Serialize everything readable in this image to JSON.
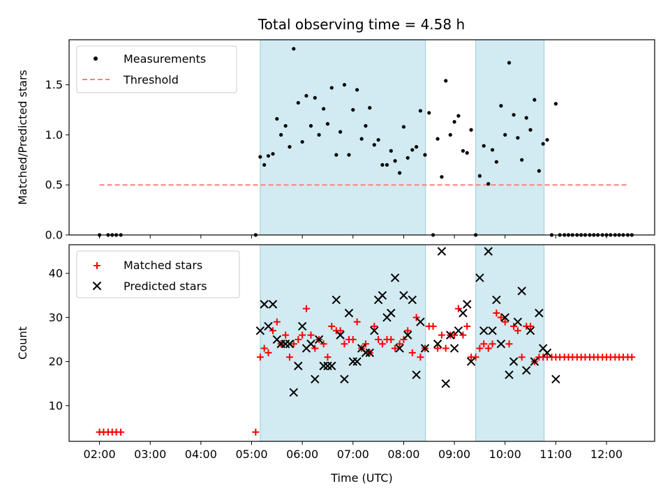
{
  "title": "Total observing time = 4.58 h",
  "colors": {
    "shade": "#add8e6",
    "measurement": "#000000",
    "threshold": "#ff7f7f",
    "matched": "#ff0000",
    "predicted": "#000000"
  },
  "chart_data": [
    {
      "type": "scatter",
      "ylabel": "Matched/Predicted stars",
      "xlabel": "",
      "xlim": [
        1.4,
        12.95
      ],
      "ylim": [
        0,
        1.95
      ],
      "yticks": [
        0.0,
        0.5,
        1.0,
        1.5
      ],
      "ytick_labels": [
        "0.0",
        "0.5",
        "1.0",
        "1.5"
      ],
      "legend": {
        "position": "upper left",
        "entries": [
          {
            "label": "Measurements",
            "marker": "dot"
          },
          {
            "label": "Threshold",
            "marker": "dashed-line"
          }
        ]
      },
      "shaded_intervals": [
        [
          5.17,
          8.43
        ],
        [
          9.42,
          10.77
        ]
      ],
      "threshold": {
        "name": "Threshold",
        "y": 0.5,
        "x_start": 2.0,
        "x_end": 12.43
      },
      "series": [
        {
          "name": "Measurements",
          "points": [
            [
              2.0,
              0
            ],
            [
              2.17,
              0
            ],
            [
              2.25,
              0
            ],
            [
              2.33,
              0
            ],
            [
              2.42,
              0
            ],
            [
              5.08,
              0
            ],
            [
              5.17,
              0.78
            ],
            [
              5.25,
              0.7
            ],
            [
              5.33,
              0.79
            ],
            [
              5.42,
              0.81
            ],
            [
              5.5,
              1.16
            ],
            [
              5.58,
              1.0
            ],
            [
              5.67,
              1.09
            ],
            [
              5.75,
              0.88
            ],
            [
              5.83,
              1.86
            ],
            [
              5.92,
              1.32
            ],
            [
              6.0,
              0.93
            ],
            [
              6.08,
              1.39
            ],
            [
              6.17,
              1.09
            ],
            [
              6.25,
              1.37
            ],
            [
              6.33,
              1.0
            ],
            [
              6.42,
              1.26
            ],
            [
              6.5,
              1.11
            ],
            [
              6.58,
              1.47
            ],
            [
              6.67,
              0.8
            ],
            [
              6.75,
              1.03
            ],
            [
              6.83,
              1.5
            ],
            [
              6.92,
              0.8
            ],
            [
              7.0,
              1.25
            ],
            [
              7.08,
              1.45
            ],
            [
              7.17,
              0.96
            ],
            [
              7.25,
              1.09
            ],
            [
              7.33,
              1.27
            ],
            [
              7.42,
              0.9
            ],
            [
              7.5,
              0.95
            ],
            [
              7.58,
              0.7
            ],
            [
              7.67,
              0.7
            ],
            [
              7.75,
              0.84
            ],
            [
              7.83,
              0.74
            ],
            [
              7.92,
              0.62
            ],
            [
              8.0,
              1.08
            ],
            [
              8.08,
              0.77
            ],
            [
              8.17,
              0.85
            ],
            [
              8.25,
              0.88
            ],
            [
              8.33,
              1.24
            ],
            [
              8.42,
              0.8
            ],
            [
              8.5,
              1.22
            ],
            [
              8.58,
              0
            ],
            [
              8.67,
              0.96
            ],
            [
              8.75,
              0.58
            ],
            [
              8.83,
              1.54
            ],
            [
              8.92,
              1.0
            ],
            [
              9.0,
              1.13
            ],
            [
              9.08,
              1.19
            ],
            [
              9.17,
              0.84
            ],
            [
              9.25,
              0.82
            ],
            [
              9.33,
              1.05
            ],
            [
              9.42,
              0
            ],
            [
              9.5,
              0.59
            ],
            [
              9.58,
              0.89
            ],
            [
              9.67,
              0.51
            ],
            [
              9.75,
              0.85
            ],
            [
              9.83,
              0.73
            ],
            [
              9.92,
              1.29
            ],
            [
              10.0,
              1.0
            ],
            [
              10.08,
              1.72
            ],
            [
              10.17,
              1.2
            ],
            [
              10.25,
              0.97
            ],
            [
              10.33,
              0.75
            ],
            [
              10.42,
              1.17
            ],
            [
              10.5,
              1.05
            ],
            [
              10.58,
              1.35
            ],
            [
              10.67,
              0.64
            ],
            [
              10.75,
              0.91
            ],
            [
              10.83,
              0.95
            ],
            [
              10.92,
              0
            ],
            [
              11.0,
              1.31
            ],
            [
              11.08,
              0
            ],
            [
              11.17,
              0
            ],
            [
              11.25,
              0
            ],
            [
              11.33,
              0
            ],
            [
              11.42,
              0
            ],
            [
              11.5,
              0
            ],
            [
              11.58,
              0
            ],
            [
              11.67,
              0
            ],
            [
              11.75,
              0
            ],
            [
              11.83,
              0
            ],
            [
              11.92,
              0
            ],
            [
              12.0,
              0
            ],
            [
              12.08,
              0
            ],
            [
              12.17,
              0
            ],
            [
              12.25,
              0
            ],
            [
              12.33,
              0
            ],
            [
              12.42,
              0
            ],
            [
              12.5,
              0
            ]
          ]
        }
      ]
    },
    {
      "type": "scatter",
      "ylabel": "Count",
      "xlabel": "Time (UTC)",
      "xlim": [
        1.4,
        12.95
      ],
      "ylim": [
        1.9,
        46.5
      ],
      "yticks": [
        10,
        20,
        30,
        40
      ],
      "ytick_labels": [
        "10",
        "20",
        "30",
        "40"
      ],
      "xticks": [
        2,
        3,
        4,
        5,
        6,
        7,
        8,
        9,
        10,
        11,
        12
      ],
      "xtick_labels": [
        "02:00",
        "03:00",
        "04:00",
        "05:00",
        "06:00",
        "07:00",
        "08:00",
        "09:00",
        "10:00",
        "11:00",
        "12:00"
      ],
      "legend": {
        "position": "upper left",
        "entries": [
          {
            "label": "Matched stars",
            "marker": "plus"
          },
          {
            "label": "Predicted stars",
            "marker": "x"
          }
        ]
      },
      "shaded_intervals": [
        [
          5.17,
          8.43
        ],
        [
          9.42,
          10.77
        ]
      ],
      "series": [
        {
          "name": "Matched stars",
          "marker": "plus",
          "points": [
            [
              2.0,
              4
            ],
            [
              2.08,
              4
            ],
            [
              2.17,
              4
            ],
            [
              2.25,
              4
            ],
            [
              2.33,
              4
            ],
            [
              2.42,
              4
            ],
            [
              5.08,
              4
            ],
            [
              5.17,
              21
            ],
            [
              5.25,
              23
            ],
            [
              5.33,
              22
            ],
            [
              5.42,
              27
            ],
            [
              5.5,
              29
            ],
            [
              5.58,
              24
            ],
            [
              5.67,
              26
            ],
            [
              5.75,
              21
            ],
            [
              5.83,
              24
            ],
            [
              5.92,
              25
            ],
            [
              6.0,
              26
            ],
            [
              6.08,
              32
            ],
            [
              6.17,
              26
            ],
            [
              6.25,
              23
            ],
            [
              6.33,
              25
            ],
            [
              6.42,
              24
            ],
            [
              6.5,
              21
            ],
            [
              6.58,
              28
            ],
            [
              6.67,
              27
            ],
            [
              6.75,
              27
            ],
            [
              6.83,
              24
            ],
            [
              6.92,
              25
            ],
            [
              7.0,
              25
            ],
            [
              7.08,
              29
            ],
            [
              7.17,
              23
            ],
            [
              7.25,
              24
            ],
            [
              7.33,
              22
            ],
            [
              7.42,
              28
            ],
            [
              7.5,
              25
            ],
            [
              7.58,
              24
            ],
            [
              7.67,
              25
            ],
            [
              7.75,
              25
            ],
            [
              7.83,
              23
            ],
            [
              7.92,
              24
            ],
            [
              8.0,
              25
            ],
            [
              8.08,
              27
            ],
            [
              8.17,
              22
            ],
            [
              8.25,
              30
            ],
            [
              8.33,
              21
            ],
            [
              8.42,
              23
            ],
            [
              8.5,
              28
            ],
            [
              8.58,
              28
            ],
            [
              8.67,
              23
            ],
            [
              8.75,
              26
            ],
            [
              8.83,
              23
            ],
            [
              8.92,
              26
            ],
            [
              9.0,
              26
            ],
            [
              9.08,
              32
            ],
            [
              9.17,
              26
            ],
            [
              9.25,
              28
            ],
            [
              9.33,
              21
            ],
            [
              9.42,
              21
            ],
            [
              9.5,
              23
            ],
            [
              9.58,
              24
            ],
            [
              9.67,
              23
            ],
            [
              9.75,
              24
            ],
            [
              9.83,
              31
            ],
            [
              9.92,
              30
            ],
            [
              10.0,
              29
            ],
            [
              10.08,
              24
            ],
            [
              10.17,
              28
            ],
            [
              10.25,
              27
            ],
            [
              10.33,
              21
            ],
            [
              10.42,
              28
            ],
            [
              10.5,
              28
            ],
            [
              10.58,
              20
            ],
            [
              10.67,
              21
            ],
            [
              10.75,
              21
            ],
            [
              10.83,
              21
            ],
            [
              10.92,
              21
            ],
            [
              11.0,
              21
            ],
            [
              11.08,
              21
            ],
            [
              11.17,
              21
            ],
            [
              11.25,
              21
            ],
            [
              11.33,
              21
            ],
            [
              11.42,
              21
            ],
            [
              11.5,
              21
            ],
            [
              11.58,
              21
            ],
            [
              11.67,
              21
            ],
            [
              11.75,
              21
            ],
            [
              11.83,
              21
            ],
            [
              11.92,
              21
            ],
            [
              12.0,
              21
            ],
            [
              12.08,
              21
            ],
            [
              12.17,
              21
            ],
            [
              12.25,
              21
            ],
            [
              12.33,
              21
            ],
            [
              12.42,
              21
            ],
            [
              12.5,
              21
            ]
          ]
        },
        {
          "name": "Predicted stars",
          "marker": "x",
          "points": [
            [
              5.17,
              27
            ],
            [
              5.25,
              33
            ],
            [
              5.33,
              28
            ],
            [
              5.42,
              33
            ],
            [
              5.5,
              25
            ],
            [
              5.58,
              24
            ],
            [
              5.67,
              24
            ],
            [
              5.75,
              24
            ],
            [
              5.83,
              13
            ],
            [
              5.92,
              19
            ],
            [
              6.0,
              28
            ],
            [
              6.08,
              23
            ],
            [
              6.17,
              24
            ],
            [
              6.25,
              16
            ],
            [
              6.33,
              25
            ],
            [
              6.42,
              19
            ],
            [
              6.5,
              19
            ],
            [
              6.58,
              19
            ],
            [
              6.67,
              34
            ],
            [
              6.75,
              26
            ],
            [
              6.83,
              16
            ],
            [
              6.92,
              31
            ],
            [
              7.0,
              20
            ],
            [
              7.08,
              20
            ],
            [
              7.17,
              23
            ],
            [
              7.25,
              22
            ],
            [
              7.33,
              22
            ],
            [
              7.42,
              27
            ],
            [
              7.5,
              34
            ],
            [
              7.58,
              35
            ],
            [
              7.67,
              30
            ],
            [
              7.75,
              31
            ],
            [
              7.83,
              39
            ],
            [
              7.92,
              23
            ],
            [
              8.0,
              35
            ],
            [
              8.08,
              26
            ],
            [
              8.17,
              34
            ],
            [
              8.25,
              17
            ],
            [
              8.33,
              29
            ],
            [
              8.42,
              23
            ],
            [
              8.67,
              24
            ],
            [
              8.75,
              45
            ],
            [
              8.83,
              15
            ],
            [
              8.92,
              26
            ],
            [
              9.0,
              23
            ],
            [
              9.08,
              27
            ],
            [
              9.17,
              31
            ],
            [
              9.25,
              33
            ],
            [
              9.33,
              20
            ],
            [
              9.5,
              39
            ],
            [
              9.58,
              27
            ],
            [
              9.67,
              45
            ],
            [
              9.75,
              27
            ],
            [
              9.83,
              34
            ],
            [
              9.92,
              24
            ],
            [
              10.0,
              30
            ],
            [
              10.08,
              17
            ],
            [
              10.17,
              20
            ],
            [
              10.25,
              29
            ],
            [
              10.33,
              36
            ],
            [
              10.42,
              18
            ],
            [
              10.5,
              27
            ],
            [
              10.58,
              20
            ],
            [
              10.67,
              31
            ],
            [
              10.75,
              23
            ],
            [
              10.83,
              22
            ],
            [
              11.0,
              16
            ]
          ]
        }
      ]
    }
  ]
}
